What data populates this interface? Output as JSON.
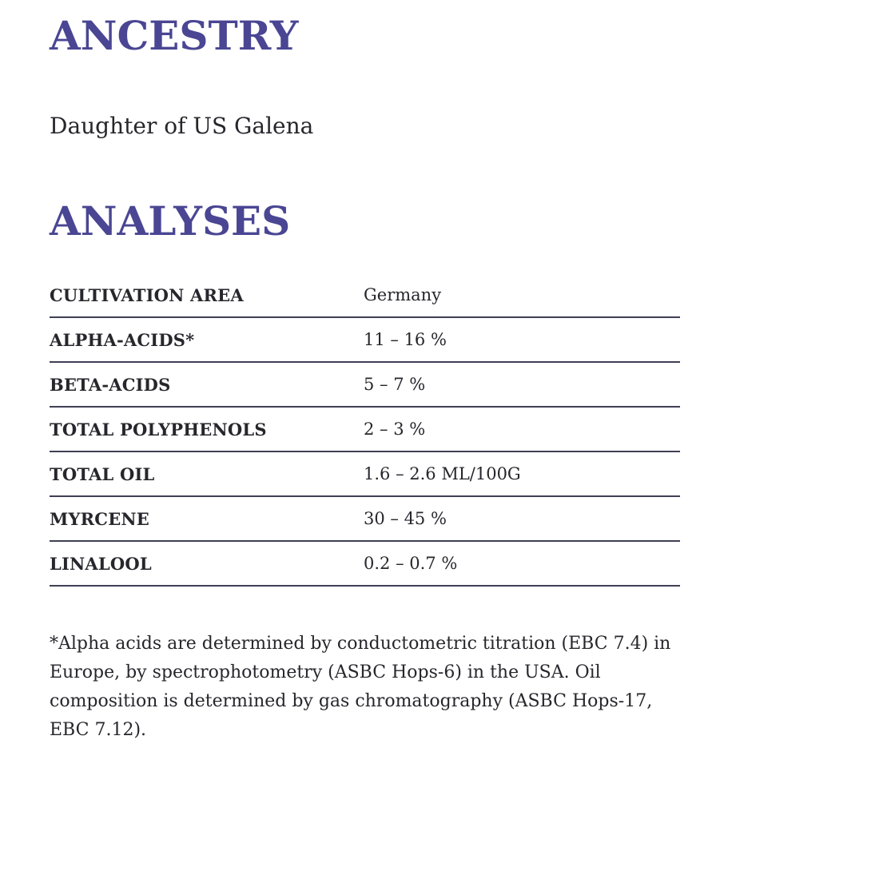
{
  "colors": {
    "heading_purple": "#4a4693",
    "body_text": "#26262c",
    "table_rule": "#3f3f55",
    "background": "#ffffff"
  },
  "ancestry": {
    "heading": "ANCESTRY",
    "description": "Daughter of US Galena"
  },
  "analyses": {
    "heading": "ANALYSES",
    "table": {
      "rows": [
        {
          "label": "CULTIVATION AREA",
          "value": "Germany"
        },
        {
          "label": "ALPHA-ACIDS*",
          "value": "11 – 16 %"
        },
        {
          "label": "BETA-ACIDS",
          "value": "5 – 7 %"
        },
        {
          "label": "TOTAL POLYPHENOLS",
          "value": "2 – 3 %"
        },
        {
          "label": "TOTAL OIL",
          "value": "1.6 – 2.6 ML/100G"
        },
        {
          "label": "MYRCENE",
          "value": "30 – 45 %"
        },
        {
          "label": "LINALOOL",
          "value": "0.2 – 0.7 %"
        }
      ]
    },
    "footnote": "*Alpha acids are determined by conductometric titration (EBC 7.4) in Europe, by spectrophotometry (ASBC Hops-6) in the USA. Oil composition is determined by gas chromatography (ASBC Hops-17, EBC 7.12)."
  }
}
